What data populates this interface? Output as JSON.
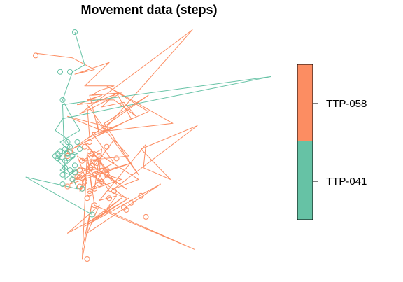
{
  "chart_data": {
    "type": "line",
    "title": "Movement data (steps)",
    "xlabel": "",
    "ylabel": "",
    "xlim": [
      0,
      100
    ],
    "ylim": [
      0,
      100
    ],
    "grid": false,
    "legend": {
      "position": "right",
      "style": "colorbar"
    },
    "series": [
      {
        "name": "TTP-041",
        "color": "#66c2a5",
        "x": [
          20,
          24,
          19,
          15,
          18,
          22,
          14,
          17,
          21,
          16,
          18,
          15,
          13,
          17,
          20,
          16,
          14,
          18,
          22,
          19,
          16,
          15,
          100,
          15,
          12,
          16,
          18,
          15,
          13,
          17,
          19,
          21,
          0,
          27
        ],
        "y": [
          97,
          83,
          80,
          68,
          62,
          55,
          50,
          47,
          45,
          44,
          47,
          45,
          43,
          42,
          44,
          40,
          38,
          36,
          39,
          37,
          34,
          66,
          78,
          60,
          55,
          52,
          48,
          45,
          42,
          38,
          35,
          30,
          35,
          19
        ]
      },
      {
        "name": "TTP-058",
        "color": "#fc8d62",
        "x": [
          4,
          19,
          28,
          20,
          34,
          31,
          24,
          36,
          30,
          27,
          39,
          26,
          22,
          68,
          30,
          26,
          38,
          33,
          29,
          21,
          31,
          25,
          36,
          45,
          40,
          31,
          37,
          43,
          30,
          29,
          33,
          17,
          35,
          19,
          50,
          32,
          46,
          25,
          26,
          50,
          33,
          60,
          27,
          36,
          30,
          31,
          23,
          42,
          36,
          26,
          20,
          43,
          18,
          30,
          28,
          39,
          23,
          41,
          34,
          25,
          27,
          32,
          26,
          25,
          29,
          31,
          34,
          24,
          37,
          30,
          41,
          21,
          25,
          22,
          28,
          46,
          36,
          70,
          47,
          59,
          48,
          49,
          30,
          37,
          32,
          39,
          26,
          42,
          24,
          55,
          25,
          30,
          17,
          33,
          69,
          28,
          25,
          23,
          27,
          23
        ],
        "y": [
          88,
          86,
          81,
          79,
          84,
          81,
          74,
          74,
          72,
          70,
          71,
          64,
          62,
          98,
          53,
          70,
          71,
          69,
          67,
          66,
          70,
          68,
          68,
          61,
          67,
          65,
          71,
          60,
          53,
          59,
          54,
          61,
          56,
          47,
          70,
          58,
          36,
          66,
          52,
          63,
          74,
          58,
          54,
          41,
          38,
          47,
          42,
          44,
          51,
          37,
          34,
          41,
          32,
          44,
          30,
          34,
          39,
          26,
          29,
          45,
          29,
          39,
          38,
          40,
          34,
          33,
          37,
          50,
          32,
          38,
          30,
          44,
          33,
          29,
          46,
          34,
          30,
          57,
          47,
          34,
          39,
          49,
          25,
          27,
          20,
          26,
          16,
          26,
          14,
          32,
          11,
          23,
          11,
          20,
          4,
          23,
          45,
          0,
          24,
          4
        ],
        "marker_x": [
          4,
          34,
          49,
          43,
          26,
          40,
          28,
          30,
          22,
          17,
          23,
          26,
          47,
          33,
          37,
          26,
          29,
          21,
          17,
          24,
          31,
          27,
          28,
          19,
          22,
          20,
          23,
          25,
          30,
          26,
          18,
          28,
          36,
          22,
          33,
          41,
          28,
          33,
          27,
          24,
          25
        ],
        "marker_y": [
          87,
          26,
          18,
          24,
          50,
          22,
          36,
          32,
          38,
          31,
          42,
          29,
          27,
          36,
          43,
          46,
          41,
          35,
          44,
          48,
          33,
          45,
          23,
          34,
          31,
          37,
          30,
          26,
          44,
          28,
          46,
          30,
          29,
          35,
          38,
          21,
          43,
          48,
          40,
          33,
          0
        ]
      }
    ],
    "series_markers_041": {
      "x": [
        20,
        14,
        18,
        15,
        21,
        16,
        17,
        13,
        19,
        22,
        15,
        18,
        20,
        16,
        14,
        17,
        19,
        23,
        15,
        12,
        18,
        16,
        20,
        13,
        27
      ],
      "y": [
        97,
        80,
        80,
        68,
        50,
        47,
        45,
        43,
        44,
        47,
        36,
        38,
        40,
        42,
        46,
        50,
        34,
        30,
        32,
        44,
        48,
        39,
        37,
        45,
        19
      ]
    }
  },
  "legend_labels": [
    "TTP-041",
    "TTP-058"
  ]
}
